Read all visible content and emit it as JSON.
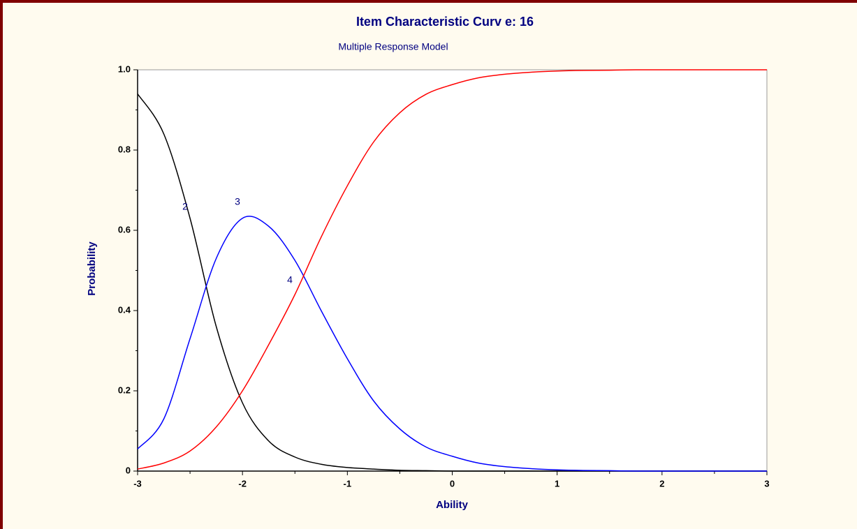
{
  "chart_data": {
    "type": "line",
    "title": "Item Characteristic Curv e: 16",
    "subtitle": "Multiple Response Model",
    "xlabel": "Ability",
    "ylabel": "Probability",
    "x": [
      -3,
      -2.75,
      -2.5,
      -2.25,
      -2,
      -1.75,
      -1.5,
      -1.25,
      -1,
      -0.75,
      -0.5,
      -0.25,
      0,
      0.25,
      0.5,
      0.75,
      1,
      1.25,
      1.5,
      1.75,
      2,
      2.25,
      2.5,
      2.75,
      3
    ],
    "series": [
      {
        "name": "2",
        "color": "#000000",
        "values": [
          0.94,
          0.84,
          0.63,
          0.36,
          0.17,
          0.075,
          0.035,
          0.017,
          0.009,
          0.005,
          0.002,
          0.001,
          0,
          0,
          0,
          0,
          0,
          0,
          0,
          0,
          0,
          0,
          0,
          0,
          0
        ]
      },
      {
        "name": "3",
        "color": "#0000ff",
        "values": [
          0.055,
          0.13,
          0.33,
          0.53,
          0.63,
          0.61,
          0.525,
          0.4,
          0.28,
          0.175,
          0.105,
          0.06,
          0.037,
          0.02,
          0.011,
          0.006,
          0.003,
          0.0015,
          0.001,
          0,
          0,
          0,
          0,
          0,
          0
        ]
      },
      {
        "name": "4",
        "color": "#ff0000",
        "values": [
          0.005,
          0.02,
          0.05,
          0.11,
          0.2,
          0.315,
          0.44,
          0.583,
          0.711,
          0.82,
          0.893,
          0.939,
          0.963,
          0.98,
          0.989,
          0.994,
          0.997,
          0.9985,
          0.999,
          1,
          1,
          1,
          1,
          1,
          1
        ]
      }
    ],
    "xlim": [
      -3,
      3
    ],
    "ylim": [
      0,
      1
    ],
    "xticks": [
      -3,
      -2,
      -1,
      0,
      1,
      2,
      3
    ],
    "yticks": [
      0,
      0.2,
      0.4,
      0.6,
      0.8,
      {
        "value": 1,
        "label": "1.0"
      }
    ],
    "xminorticks": [
      -2.5,
      -1.5,
      -0.5,
      0.5,
      1.5,
      2.5
    ],
    "yminorticks": [
      0.1,
      0.3,
      0.5,
      0.7,
      0.9
    ]
  }
}
